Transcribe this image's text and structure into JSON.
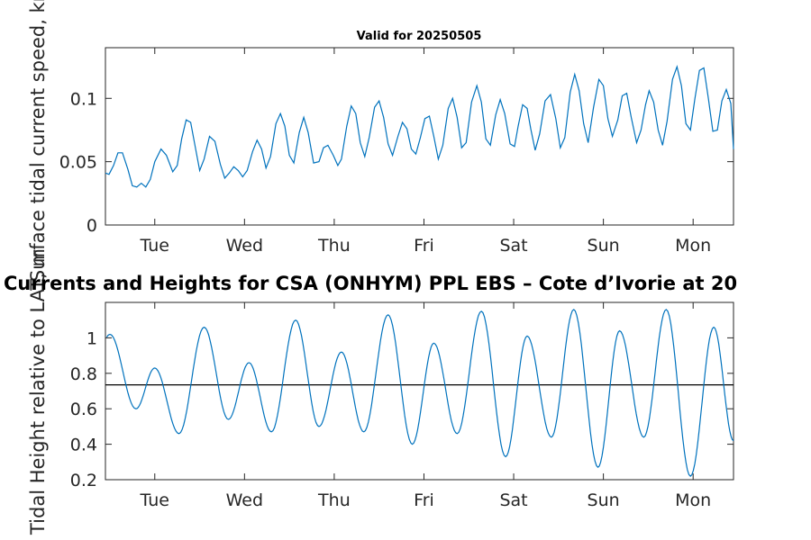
{
  "figure": {
    "title": "Currents and Heights for CSA (ONHYM) PPL EBS  – Cote d’Ivorie at 20"
  },
  "chart_data": [
    {
      "type": "line",
      "title": "Valid for 20250505",
      "xlabel": "",
      "ylabel": "Surface tidal current speed, kn",
      "xlim": [
        0,
        7
      ],
      "ylim": [
        0,
        0.14
      ],
      "x_ticks": [
        {
          "value": 0.55,
          "label": "Tue"
        },
        {
          "value": 1.55,
          "label": "Wed"
        },
        {
          "value": 2.55,
          "label": "Thu"
        },
        {
          "value": 3.55,
          "label": "Fri"
        },
        {
          "value": 4.55,
          "label": "Sat"
        },
        {
          "value": 5.55,
          "label": "Sun"
        },
        {
          "value": 6.55,
          "label": "Mon"
        }
      ],
      "y_ticks": [
        {
          "value": 0,
          "label": "0"
        },
        {
          "value": 0.05,
          "label": "0.05"
        },
        {
          "value": 0.1,
          "label": "0.1"
        }
      ],
      "series": [
        {
          "color": "#0072bd",
          "points": [
            [
              0,
              0.041
            ],
            [
              0.04,
              0.04
            ],
            [
              0.09,
              0.047
            ],
            [
              0.14,
              0.057
            ],
            [
              0.19,
              0.057
            ],
            [
              0.25,
              0.044
            ],
            [
              0.3,
              0.031
            ],
            [
              0.35,
              0.03
            ],
            [
              0.4,
              0.033
            ],
            [
              0.45,
              0.03
            ],
            [
              0.5,
              0.036
            ],
            [
              0.55,
              0.05
            ],
            [
              0.62,
              0.06
            ],
            [
              0.68,
              0.055
            ],
            [
              0.75,
              0.042
            ],
            [
              0.8,
              0.047
            ],
            [
              0.85,
              0.068
            ],
            [
              0.9,
              0.083
            ],
            [
              0.95,
              0.081
            ],
            [
              1.0,
              0.062
            ],
            [
              1.05,
              0.043
            ],
            [
              1.1,
              0.052
            ],
            [
              1.16,
              0.07
            ],
            [
              1.22,
              0.066
            ],
            [
              1.28,
              0.048
            ],
            [
              1.33,
              0.037
            ],
            [
              1.38,
              0.041
            ],
            [
              1.43,
              0.046
            ],
            [
              1.48,
              0.043
            ],
            [
              1.53,
              0.038
            ],
            [
              1.58,
              0.043
            ],
            [
              1.64,
              0.058
            ],
            [
              1.69,
              0.067
            ],
            [
              1.74,
              0.06
            ],
            [
              1.79,
              0.045
            ],
            [
              1.84,
              0.054
            ],
            [
              1.9,
              0.08
            ],
            [
              1.95,
              0.088
            ],
            [
              2.0,
              0.078
            ],
            [
              2.05,
              0.055
            ],
            [
              2.1,
              0.049
            ],
            [
              2.16,
              0.073
            ],
            [
              2.21,
              0.085
            ],
            [
              2.26,
              0.073
            ],
            [
              2.32,
              0.049
            ],
            [
              2.38,
              0.05
            ],
            [
              2.43,
              0.061
            ],
            [
              2.48,
              0.063
            ],
            [
              2.54,
              0.055
            ],
            [
              2.59,
              0.047
            ],
            [
              2.63,
              0.052
            ],
            [
              2.69,
              0.078
            ],
            [
              2.74,
              0.094
            ],
            [
              2.79,
              0.088
            ],
            [
              2.84,
              0.065
            ],
            [
              2.89,
              0.054
            ],
            [
              2.94,
              0.069
            ],
            [
              3.0,
              0.093
            ],
            [
              3.05,
              0.098
            ],
            [
              3.1,
              0.085
            ],
            [
              3.15,
              0.064
            ],
            [
              3.2,
              0.055
            ],
            [
              3.26,
              0.07
            ],
            [
              3.31,
              0.081
            ],
            [
              3.36,
              0.076
            ],
            [
              3.41,
              0.06
            ],
            [
              3.46,
              0.056
            ],
            [
              3.51,
              0.069
            ],
            [
              3.56,
              0.084
            ],
            [
              3.61,
              0.086
            ],
            [
              3.66,
              0.07
            ],
            [
              3.71,
              0.052
            ],
            [
              3.76,
              0.063
            ],
            [
              3.82,
              0.092
            ],
            [
              3.87,
              0.1
            ],
            [
              3.92,
              0.085
            ],
            [
              3.97,
              0.061
            ],
            [
              4.02,
              0.065
            ],
            [
              4.08,
              0.097
            ],
            [
              4.14,
              0.11
            ],
            [
              4.19,
              0.097
            ],
            [
              4.24,
              0.068
            ],
            [
              4.29,
              0.063
            ],
            [
              4.35,
              0.087
            ],
            [
              4.4,
              0.099
            ],
            [
              4.45,
              0.088
            ],
            [
              4.51,
              0.064
            ],
            [
              4.56,
              0.062
            ],
            [
              4.6,
              0.078
            ],
            [
              4.65,
              0.095
            ],
            [
              4.7,
              0.092
            ],
            [
              4.74,
              0.076
            ],
            [
              4.79,
              0.059
            ],
            [
              4.84,
              0.072
            ],
            [
              4.9,
              0.098
            ],
            [
              4.96,
              0.103
            ],
            [
              5.02,
              0.084
            ],
            [
              5.07,
              0.061
            ],
            [
              5.12,
              0.069
            ],
            [
              5.18,
              0.105
            ],
            [
              5.23,
              0.119
            ],
            [
              5.28,
              0.106
            ],
            [
              5.33,
              0.08
            ],
            [
              5.38,
              0.065
            ],
            [
              5.44,
              0.093
            ],
            [
              5.5,
              0.115
            ],
            [
              5.55,
              0.11
            ],
            [
              5.6,
              0.084
            ],
            [
              5.65,
              0.07
            ],
            [
              5.71,
              0.083
            ],
            [
              5.76,
              0.102
            ],
            [
              5.81,
              0.104
            ],
            [
              5.86,
              0.085
            ],
            [
              5.92,
              0.065
            ],
            [
              5.97,
              0.075
            ],
            [
              6.02,
              0.095
            ],
            [
              6.06,
              0.106
            ],
            [
              6.11,
              0.097
            ],
            [
              6.16,
              0.075
            ],
            [
              6.21,
              0.063
            ],
            [
              6.26,
              0.082
            ],
            [
              6.32,
              0.115
            ],
            [
              6.37,
              0.125
            ],
            [
              6.42,
              0.11
            ],
            [
              6.47,
              0.08
            ],
            [
              6.52,
              0.075
            ],
            [
              6.57,
              0.1
            ],
            [
              6.62,
              0.122
            ],
            [
              6.67,
              0.124
            ],
            [
              6.72,
              0.1
            ],
            [
              6.77,
              0.074
            ],
            [
              6.82,
              0.075
            ],
            [
              6.87,
              0.098
            ],
            [
              6.92,
              0.107
            ],
            [
              6.97,
              0.096
            ],
            [
              7.0,
              0.06
            ]
          ]
        }
      ]
    },
    {
      "type": "line",
      "title": "",
      "xlabel": "",
      "ylabel": "Tidal Height relative to LAT, m",
      "xlim": [
        0,
        7
      ],
      "ylim": [
        0.2,
        1.2
      ],
      "x_ticks": [
        {
          "value": 0.55,
          "label": "Tue"
        },
        {
          "value": 1.55,
          "label": "Wed"
        },
        {
          "value": 2.55,
          "label": "Thu"
        },
        {
          "value": 3.55,
          "label": "Fri"
        },
        {
          "value": 4.55,
          "label": "Sat"
        },
        {
          "value": 5.55,
          "label": "Sun"
        },
        {
          "value": 6.55,
          "label": "Mon"
        }
      ],
      "y_ticks": [
        {
          "value": 0.2,
          "label": "0.2"
        },
        {
          "value": 0.4,
          "label": "0.4"
        },
        {
          "value": 0.6,
          "label": "0.6"
        },
        {
          "value": 0.8,
          "label": "0.8"
        },
        {
          "value": 1.0,
          "label": "1"
        }
      ],
      "reference_line": {
        "y": 0.735,
        "color": "#000000"
      },
      "series": [
        {
          "color": "#0072bd",
          "waveform": {
            "type": "tide",
            "mean": 0.735,
            "extrema": [
              [
                0.05,
                1.02
              ],
              [
                0.34,
                0.6
              ],
              [
                0.55,
                0.83
              ],
              [
                0.82,
                0.46
              ],
              [
                1.1,
                1.06
              ],
              [
                1.37,
                0.54
              ],
              [
                1.6,
                0.86
              ],
              [
                1.85,
                0.47
              ],
              [
                2.12,
                1.1
              ],
              [
                2.38,
                0.5
              ],
              [
                2.63,
                0.92
              ],
              [
                2.88,
                0.47
              ],
              [
                3.15,
                1.13
              ],
              [
                3.42,
                0.4
              ],
              [
                3.66,
                0.97
              ],
              [
                3.92,
                0.46
              ],
              [
                4.19,
                1.15
              ],
              [
                4.46,
                0.33
              ],
              [
                4.7,
                1.01
              ],
              [
                4.97,
                0.44
              ],
              [
                5.22,
                1.16
              ],
              [
                5.49,
                0.27
              ],
              [
                5.73,
                1.04
              ],
              [
                6.0,
                0.44
              ],
              [
                6.25,
                1.16
              ],
              [
                6.52,
                0.22
              ],
              [
                6.78,
                1.06
              ],
              [
                7.0,
                0.42
              ]
            ]
          }
        }
      ]
    }
  ]
}
